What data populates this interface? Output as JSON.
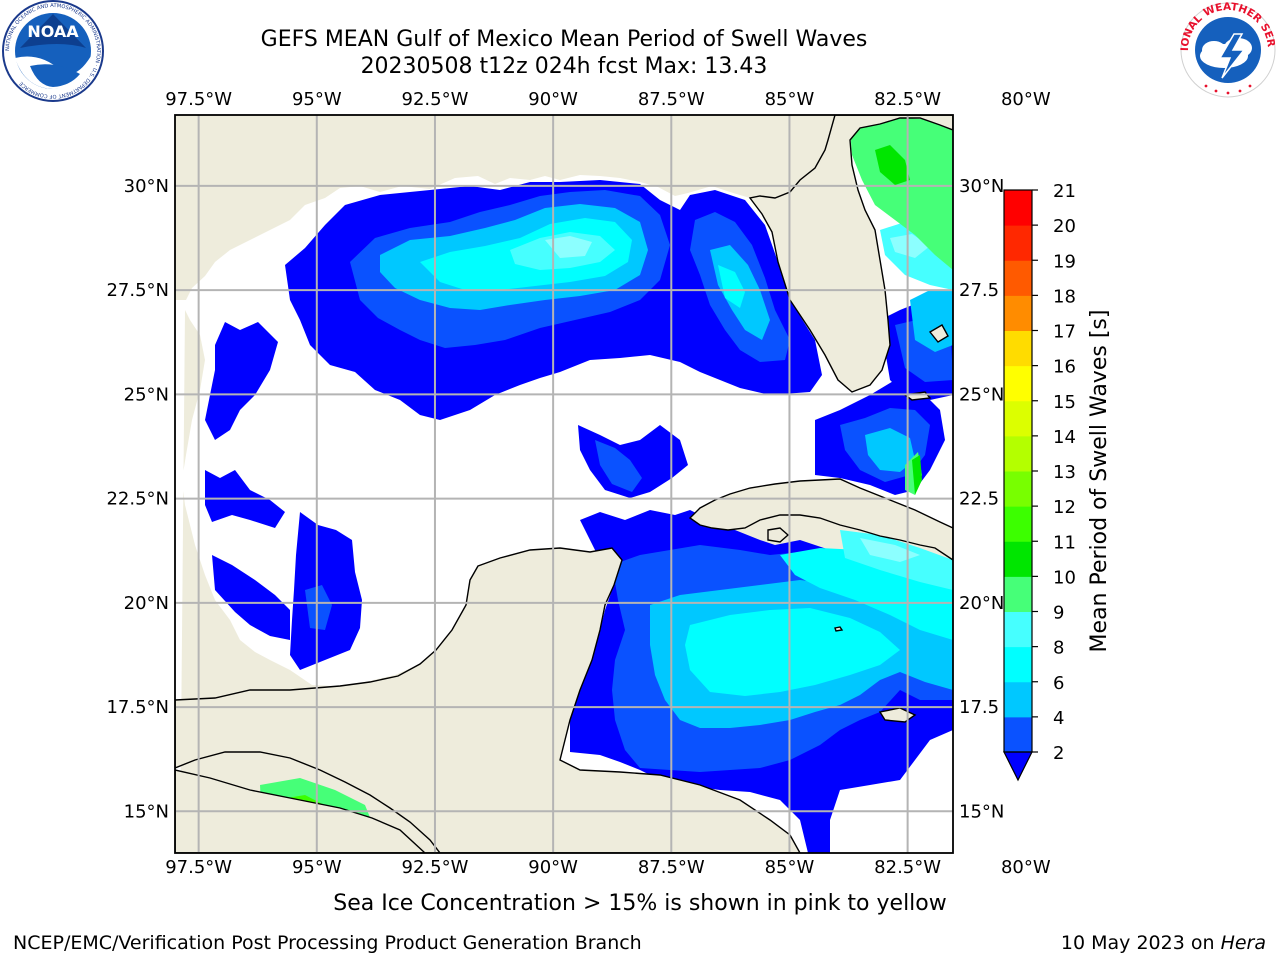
{
  "header": {
    "title": "GEFS MEAN Gulf of Mexico Mean Period of Swell Waves",
    "subtitle": "20230508 t12z 024h fcst   Max: 13.43",
    "left_logo_text": "NOAA",
    "left_logo_ring_text": "NATIONAL OCEANIC AND ATMOSPHERIC ADMINISTRATION · U.S. DEPARTMENT OF COMMERCE",
    "right_logo_ring_text": "NATIONAL WEATHER SERVICE"
  },
  "map": {
    "lon_labels": [
      "97.5°W",
      "95°W",
      "92.5°W",
      "90°W",
      "87.5°W",
      "85°W",
      "82.5°W",
      "80°W"
    ],
    "lat_labels_left": [
      "30°N",
      "27.5°N",
      "25°N",
      "22.5°N",
      "20°N",
      "17.5°N",
      "15°N"
    ],
    "lat_labels_right": [
      "30°N",
      "27.5",
      "25°N",
      "22.5",
      "20°N",
      "17.5",
      "15°N"
    ],
    "lon_values": [
      -97.5,
      -95,
      -92.5,
      -90,
      -87.5,
      -85,
      -82.5,
      -80
    ],
    "lat_values": [
      30,
      27.5,
      25,
      22.5,
      20,
      17.5,
      15
    ],
    "colors": {
      "land": "#eeecdc",
      "ocean_masked": "#ffffff",
      "grid": "#b4b4b4",
      "coast": "#000000"
    }
  },
  "colorbar": {
    "label": "Mean Period of Swell Waves [s]",
    "ticks": [
      "2",
      "4",
      "6",
      "8",
      "9",
      "10",
      "11",
      "12",
      "13",
      "14",
      "15",
      "16",
      "17",
      "18",
      "19",
      "20",
      "21"
    ],
    "colors": [
      "#0a52ff",
      "#00c8ff",
      "#00ffff",
      "#46ffff",
      "#8cffff",
      "#46ff78",
      "#00e600",
      "#3cff00",
      "#78ff00",
      "#b4ff00",
      "#dcff00",
      "#ffff00",
      "#ffdc00",
      "#ffb400",
      "#ff8c00",
      "#ff5a00",
      "#ff2800",
      "#ff0000"
    ],
    "under_color": "#0000ff"
  },
  "footer": {
    "note": "Sea Ice Concentration > 15% is shown in pink to yellow",
    "credit": "NCEP/EMC/Verification Post Processing Product Generation Branch",
    "date": "10 May 2023 on",
    "host": "Hera"
  }
}
